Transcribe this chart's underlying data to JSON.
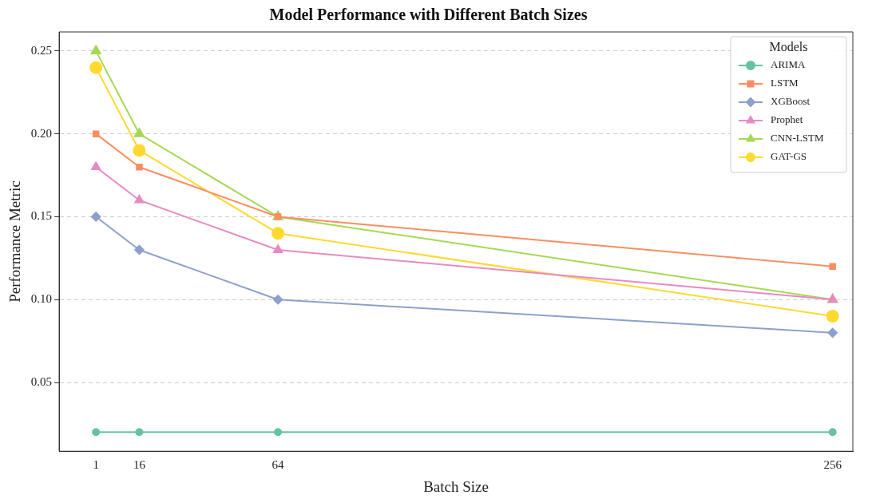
{
  "chart_data": {
    "type": "line",
    "title": "Model Performance with Different Batch Sizes",
    "xlabel": "Batch Size",
    "ylabel": "Performance Metric",
    "legend_title": "Models",
    "x": [
      1,
      16,
      64,
      256
    ],
    "xlim": [
      -11.75,
      263
    ],
    "xticks": [
      1,
      16,
      64,
      256
    ],
    "ylim": [
      0.0085,
      0.2615
    ],
    "yticks": [
      {
        "value": 0.05,
        "label": "0.05"
      },
      {
        "value": 0.1,
        "label": "0.10"
      },
      {
        "value": 0.15,
        "label": "0.15"
      },
      {
        "value": 0.2,
        "label": "0.20"
      },
      {
        "value": 0.25,
        "label": "0.25"
      }
    ],
    "grid": "y",
    "legend": "top right",
    "line_style": "solid",
    "series": [
      {
        "name": "ARIMA",
        "color": "#66c2a5",
        "marker": "circle",
        "values": [
          0.02,
          0.02,
          0.02,
          0.02
        ]
      },
      {
        "name": "LSTM",
        "color": "#fc8d62",
        "marker": "square",
        "values": [
          0.2,
          0.18,
          0.15,
          0.12
        ]
      },
      {
        "name": "XGBoost",
        "color": "#8da0cb",
        "marker": "diamond",
        "values": [
          0.15,
          0.13,
          0.1,
          0.08
        ]
      },
      {
        "name": "Prophet",
        "color": "#e78ac3",
        "marker": "triangle",
        "values": [
          0.18,
          0.16,
          0.13,
          0.1
        ]
      },
      {
        "name": "CNN-LSTM",
        "color": "#a6d854",
        "marker": "triangle",
        "values": [
          0.25,
          0.2,
          0.15,
          0.1
        ]
      },
      {
        "name": "GAT-GS",
        "color": "#ffd92f",
        "marker": "circle",
        "values": [
          0.24,
          0.19,
          0.14,
          0.09
        ]
      }
    ]
  }
}
